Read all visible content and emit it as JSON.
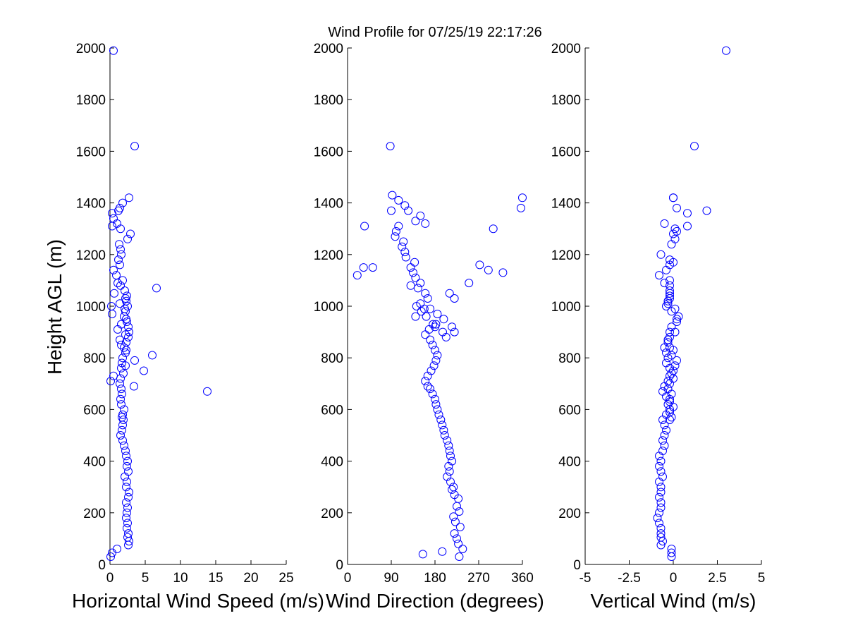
{
  "chart_data": {
    "type": "scatter",
    "title": "Wind Profile for  07/25/19 22:17:26",
    "series_color": "#0000ff",
    "panels": [
      {
        "id": "speed",
        "type": "scatter",
        "xlabel": "Horizontal Wind Speed (m/s)",
        "ylabel": "Height AGL (m)",
        "xlim": [
          0,
          25
        ],
        "ylim": [
          0,
          2000
        ],
        "xticks": [
          0,
          5,
          10,
          15,
          20,
          25
        ],
        "xtick_labels": [
          "0",
          "5",
          "10",
          "15",
          "20",
          "25"
        ],
        "yticks": [
          0,
          200,
          400,
          600,
          800,
          1000,
          1200,
          1400,
          1600,
          1800,
          2000
        ],
        "ytick_labels": [
          "0",
          "200",
          "400",
          "600",
          "800",
          "1000",
          "1200",
          "1400",
          "1600",
          "1800",
          "2000"
        ],
        "x": [
          0.1,
          0.3,
          1.0,
          2.6,
          2.7,
          2.5,
          2.6,
          2.4,
          2.5,
          2.3,
          2.4,
          2.5,
          2.3,
          2.6,
          2.7,
          2.3,
          2.4,
          2.1,
          2.6,
          2.4,
          2.5,
          2.3,
          2.2,
          2.0,
          1.8,
          1.5,
          1.7,
          1.8,
          1.9,
          1.7,
          1.8,
          2.0,
          1.6,
          1.5,
          1.7,
          1.6,
          1.4,
          1.5,
          1.9,
          1.6,
          1.7,
          1.8,
          2.2,
          2.0,
          2.3,
          2.6,
          2.7,
          2.6,
          2.4,
          2.0,
          2.2,
          2.5,
          2.3,
          2.4,
          2.1,
          1.5,
          1.8,
          0.9,
          0.5,
          1.4,
          1.2,
          1.6,
          1.5,
          1.3,
          2.5,
          2.9,
          1.5,
          0.3,
          1.0,
          0.5,
          0.3,
          1.2,
          1.4,
          1.8,
          2.7,
          3.5,
          0.5,
          0.2,
          6.6,
          1.1,
          0.6,
          2.2,
          1.4,
          2.1,
          0.3,
          2.3,
          1.6,
          1.1,
          2.2,
          1.4,
          1.6,
          2.3,
          6.0,
          3.5,
          2.2,
          4.8,
          0.5,
          0.1,
          3.4,
          13.8
        ],
        "y": [
          30,
          45,
          60,
          75,
          90,
          105,
          120,
          140,
          160,
          180,
          200,
          220,
          240,
          260,
          280,
          300,
          320,
          340,
          360,
          380,
          400,
          420,
          440,
          460,
          480,
          500,
          520,
          540,
          560,
          570,
          580,
          600,
          620,
          640,
          660,
          680,
          700,
          720,
          740,
          760,
          780,
          800,
          820,
          840,
          860,
          880,
          900,
          920,
          940,
          960,
          980,
          1000,
          1020,
          1040,
          1060,
          1080,
          1100,
          1120,
          1140,
          1160,
          1180,
          1200,
          1220,
          1240,
          1260,
          1280,
          1300,
          1310,
          1320,
          1340,
          1360,
          1370,
          1380,
          1400,
          1420,
          1620,
          1990,
          1000,
          1070,
          1090,
          1050,
          1030,
          1010,
          990,
          970,
          950,
          930,
          910,
          890,
          870,
          850,
          830,
          810,
          790,
          770,
          750,
          730,
          710,
          690,
          670
        ],
        "note": "points"
      },
      {
        "id": "direction",
        "type": "scatter",
        "xlabel": "Wind Direction (degrees)",
        "xlim": [
          0,
          360
        ],
        "ylim": [
          0,
          2000
        ],
        "xticks": [
          0,
          90,
          180,
          270,
          360
        ],
        "xtick_labels": [
          "0",
          "90",
          "180",
          "270",
          "360"
        ],
        "yticks": [
          0,
          200,
          400,
          600,
          800,
          1000,
          1200,
          1400,
          1600,
          1800,
          2000
        ],
        "ytick_labels": [
          "0",
          "200",
          "400",
          "600",
          "800",
          "1000",
          "1200",
          "1400",
          "1600",
          "1800",
          "2000"
        ],
        "x": [
          230,
          195,
          155,
          237,
          228,
          225,
          220,
          232,
          222,
          218,
          230,
          225,
          228,
          220,
          215,
          218,
          212,
          205,
          210,
          208,
          215,
          212,
          210,
          208,
          205,
          200,
          198,
          195,
          192,
          188,
          185,
          182,
          180,
          175,
          170,
          165,
          160,
          165,
          172,
          178,
          182,
          185,
          180,
          175,
          170,
          160,
          168,
          182,
          198,
          185,
          170,
          150,
          165,
          160,
          145,
          150,
          140,
          135,
          130,
          138,
          120,
          118,
          112,
          115,
          98,
          100,
          105,
          140,
          150,
          125,
          118,
          105,
          92,
          88,
          160,
          90,
          52,
          35,
          33,
          20,
          130,
          142,
          152,
          158,
          140,
          162,
          176,
          180,
          196,
          203,
          220,
          250,
          215,
          210,
          220,
          360,
          357,
          300,
          290,
          272,
          320
        ],
        "y": [
          30,
          50,
          40,
          60,
          80,
          100,
          120,
          145,
          165,
          185,
          205,
          225,
          255,
          270,
          290,
          300,
          320,
          340,
          360,
          380,
          400,
          420,
          440,
          460,
          480,
          500,
          520,
          540,
          560,
          580,
          600,
          620,
          640,
          660,
          680,
          690,
          710,
          730,
          750,
          770,
          790,
          810,
          830,
          850,
          870,
          890,
          910,
          930,
          950,
          970,
          990,
          1010,
          1030,
          1050,
          1070,
          1090,
          1110,
          1130,
          1150,
          1170,
          1190,
          1210,
          1230,
          1250,
          1270,
          1290,
          1310,
          1330,
          1350,
          1370,
          1390,
          1410,
          1430,
          1620,
          1320,
          1370,
          1150,
          1310,
          1150,
          1120,
          1080,
          1000,
          980,
          990,
          960,
          960,
          930,
          920,
          900,
          880,
          900,
          1090,
          920,
          1050,
          1030,
          1420,
          1380,
          1300,
          1140,
          1160,
          1130
        ],
        "note": "points"
      },
      {
        "id": "vertical",
        "type": "scatter",
        "xlabel": "Vertical Wind (m/s)",
        "xlim": [
          -5,
          5
        ],
        "ylim": [
          0,
          2000
        ],
        "xticks": [
          -5,
          -2.5,
          0,
          2.5,
          5
        ],
        "xtick_labels": [
          "-5",
          "-2.5",
          "0",
          "2.5",
          "5"
        ],
        "yticks": [
          0,
          200,
          400,
          600,
          800,
          1000,
          1200,
          1400,
          1600,
          1800,
          2000
        ],
        "ytick_labels": [
          "0",
          "200",
          "400",
          "600",
          "800",
          "1000",
          "1200",
          "1400",
          "1600",
          "1800",
          "2000"
        ],
        "x": [
          -0.1,
          -0.1,
          -0.1,
          -0.7,
          -0.6,
          -0.7,
          -0.7,
          -0.7,
          -0.8,
          -0.9,
          -0.8,
          -0.7,
          -0.7,
          -0.8,
          -0.7,
          -0.7,
          -0.8,
          -0.6,
          -0.7,
          -0.8,
          -0.7,
          -0.8,
          -0.6,
          -0.5,
          -0.6,
          -0.5,
          -0.4,
          -0.5,
          -0.6,
          -0.4,
          -0.2,
          -0.3,
          -0.2,
          -0.1,
          -0.3,
          -0.2,
          0.0,
          -0.1,
          -0.2,
          -0.4,
          -0.3,
          -0.4,
          -0.5,
          -0.3,
          -0.2,
          0.1,
          -0.1,
          0.2,
          0.3,
          -0.1,
          -0.4,
          -0.3,
          -0.2,
          -0.2,
          -0.2,
          -0.2,
          -0.5,
          -0.8,
          -0.4,
          -0.2,
          0.0,
          -0.2,
          -0.7,
          -0.1,
          0.1,
          0.0,
          0.2,
          0.8,
          -0.5,
          0.1,
          0.8,
          1.9,
          0.2,
          0.0,
          0.0,
          1.2,
          3.0,
          -0.3,
          -0.2,
          -0.2,
          0.1,
          0.2,
          -0.2,
          -0.3,
          -0.2,
          0.0,
          -0.1,
          0.2,
          0.1,
          0.0,
          -0.2,
          -0.3,
          -0.5,
          -0.6,
          -0.4,
          -0.2,
          0.0,
          -0.2,
          -0.1,
          -0.2
        ],
        "y": [
          30,
          45,
          60,
          75,
          90,
          105,
          120,
          140,
          160,
          180,
          200,
          220,
          240,
          260,
          280,
          300,
          320,
          340,
          360,
          380,
          400,
          420,
          440,
          460,
          480,
          500,
          520,
          540,
          560,
          580,
          600,
          620,
          640,
          660,
          680,
          700,
          720,
          740,
          760,
          780,
          800,
          820,
          840,
          860,
          880,
          900,
          920,
          940,
          960,
          980,
          1000,
          1020,
          1040,
          1060,
          1080,
          1100,
          1090,
          1120,
          1140,
          1160,
          1170,
          1180,
          1200,
          1240,
          1260,
          1280,
          1290,
          1310,
          1320,
          1300,
          1360,
          1370,
          1380,
          1420,
          1420,
          1620,
          1990,
          1010,
          1030,
          1050,
          990,
          950,
          900,
          870,
          840,
          830,
          810,
          790,
          770,
          750,
          730,
          710,
          690,
          670,
          650,
          630,
          610,
          590,
          570,
          560
        ],
        "note": "points"
      }
    ]
  }
}
